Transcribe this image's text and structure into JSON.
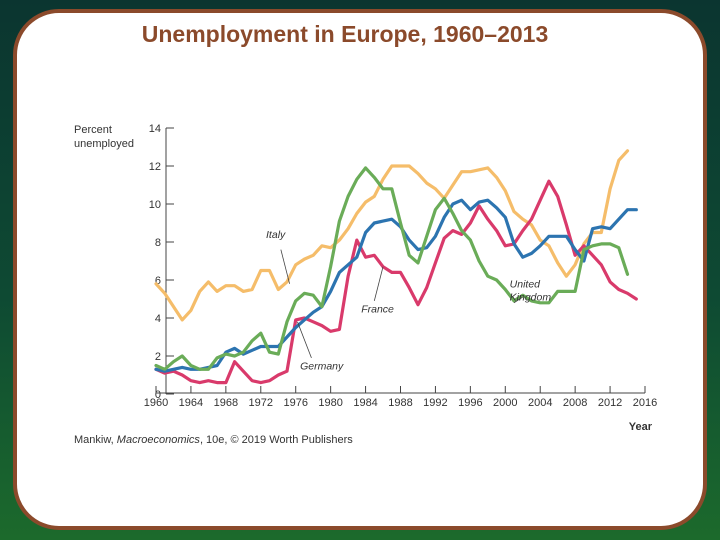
{
  "slide": {
    "title": "Unemployment in Europe, 1960–2013"
  },
  "credit": {
    "author": "Mankiw, ",
    "book": "Macroeconomics",
    "rest": ", 10e, © 2019 Worth Publishers"
  },
  "colors": {
    "border": "#8b4a2b",
    "title": "#8b4a2b"
  },
  "chart_data": {
    "type": "line",
    "title": "",
    "ylabel": "Percent unemployed",
    "ylabel_lines": [
      "Percent",
      "unemployed"
    ],
    "xlabel": "Year",
    "xlim": [
      1960,
      2016
    ],
    "ylim": [
      0,
      14
    ],
    "x_ticks": [
      1960,
      1964,
      1968,
      1972,
      1976,
      1980,
      1984,
      1988,
      1992,
      1996,
      2000,
      2004,
      2008,
      2012,
      2016
    ],
    "y_ticks": [
      0,
      2,
      4,
      6,
      8,
      10,
      12,
      14
    ],
    "grid": false,
    "legend": "inline labels",
    "series": [
      {
        "name": "Italy",
        "color": "#f5bd6a",
        "label": {
          "lines": [
            "Italy"
          ],
          "pos": [
            1972.6,
            8.2
          ],
          "leader": [
            [
              1974.3,
              7.6
            ],
            [
              1975.3,
              5.8
            ]
          ]
        },
        "points": [
          [
            1960,
            5.8
          ],
          [
            1961,
            5.3
          ],
          [
            1962,
            4.6
          ],
          [
            1963,
            3.9
          ],
          [
            1964,
            4.4
          ],
          [
            1965,
            5.4
          ],
          [
            1966,
            5.9
          ],
          [
            1967,
            5.4
          ],
          [
            1968,
            5.7
          ],
          [
            1969,
            5.7
          ],
          [
            1970,
            5.4
          ],
          [
            1971,
            5.5
          ],
          [
            1972,
            6.5
          ],
          [
            1973,
            6.5
          ],
          [
            1974,
            5.5
          ],
          [
            1975,
            5.9
          ],
          [
            1976,
            6.8
          ],
          [
            1977,
            7.1
          ],
          [
            1978,
            7.3
          ],
          [
            1979,
            7.8
          ],
          [
            1980,
            7.7
          ],
          [
            1981,
            8.1
          ],
          [
            1982,
            8.7
          ],
          [
            1983,
            9.5
          ],
          [
            1984,
            10.1
          ],
          [
            1985,
            10.4
          ],
          [
            1986,
            11.3
          ],
          [
            1987,
            12.0
          ],
          [
            1988,
            12.0
          ],
          [
            1989,
            12.0
          ],
          [
            1990,
            11.6
          ],
          [
            1991,
            11.1
          ],
          [
            1992,
            10.8
          ],
          [
            1993,
            10.3
          ],
          [
            1994,
            11.0
          ],
          [
            1995,
            11.7
          ],
          [
            1996,
            11.7
          ],
          [
            1997,
            11.8
          ],
          [
            1998,
            11.9
          ],
          [
            1999,
            11.4
          ],
          [
            2000,
            10.7
          ],
          [
            2001,
            9.6
          ],
          [
            2002,
            9.2
          ],
          [
            2003,
            8.9
          ],
          [
            2004,
            8.1
          ],
          [
            2005,
            7.8
          ],
          [
            2006,
            6.9
          ],
          [
            2007,
            6.2
          ],
          [
            2008,
            6.8
          ],
          [
            2009,
            7.9
          ],
          [
            2010,
            8.5
          ],
          [
            2011,
            8.5
          ],
          [
            2012,
            10.8
          ],
          [
            2013,
            12.3
          ],
          [
            2014,
            12.8
          ]
        ]
      },
      {
        "name": "France",
        "color": "#d93a6b",
        "label": {
          "lines": [
            "France"
          ],
          "pos": [
            1983.5,
            4.3
          ],
          "leader": [
            [
              1985.0,
              4.9
            ],
            [
              1986.0,
              6.7
            ]
          ]
        },
        "points": [
          [
            1960,
            1.3
          ],
          [
            1961,
            1.1
          ],
          [
            1962,
            1.2
          ],
          [
            1963,
            1.0
          ],
          [
            1964,
            0.7
          ],
          [
            1965,
            0.6
          ],
          [
            1966,
            0.7
          ],
          [
            1967,
            0.6
          ],
          [
            1968,
            0.6
          ],
          [
            1969,
            1.7
          ],
          [
            1970,
            1.2
          ],
          [
            1971,
            0.7
          ],
          [
            1972,
            0.6
          ],
          [
            1973,
            0.7
          ],
          [
            1974,
            1.0
          ],
          [
            1975,
            1.2
          ],
          [
            1976,
            3.9
          ],
          [
            1977,
            4.0
          ],
          [
            1978,
            3.8
          ],
          [
            1979,
            3.6
          ],
          [
            1980,
            3.3
          ],
          [
            1981,
            3.4
          ],
          [
            1982,
            6.2
          ],
          [
            1983,
            8.1
          ],
          [
            1984,
            7.2
          ],
          [
            1985,
            7.3
          ],
          [
            1986,
            6.7
          ],
          [
            1987,
            6.4
          ],
          [
            1988,
            6.4
          ],
          [
            1989,
            5.6
          ],
          [
            1990,
            4.7
          ],
          [
            1991,
            5.6
          ],
          [
            1992,
            6.9
          ],
          [
            1993,
            8.2
          ],
          [
            1994,
            8.6
          ],
          [
            1995,
            8.4
          ],
          [
            1996,
            9.0
          ],
          [
            1997,
            9.9
          ],
          [
            1998,
            9.2
          ],
          [
            1999,
            8.6
          ],
          [
            2000,
            7.8
          ],
          [
            2001,
            7.9
          ],
          [
            2002,
            8.6
          ],
          [
            2003,
            9.2
          ],
          [
            2004,
            10.2
          ],
          [
            2005,
            11.2
          ],
          [
            2006,
            10.4
          ],
          [
            2007,
            8.9
          ],
          [
            2008,
            7.3
          ],
          [
            2009,
            7.8
          ],
          [
            2010,
            7.3
          ],
          [
            2011,
            6.8
          ],
          [
            2012,
            5.9
          ],
          [
            2013,
            5.5
          ],
          [
            2014,
            5.3
          ],
          [
            2015,
            5.0
          ]
        ]
      },
      {
        "name": "Germany",
        "color": "#2c74b0",
        "label": {
          "lines": [
            "Germany"
          ],
          "pos": [
            1976.5,
            1.3
          ],
          "leader": [
            [
              1977.8,
              1.9
            ],
            [
              1976.2,
              3.8
            ]
          ]
        },
        "points": [
          [
            1960,
            1.3
          ],
          [
            1961,
            1.2
          ],
          [
            1962,
            1.3
          ],
          [
            1963,
            1.4
          ],
          [
            1964,
            1.3
          ],
          [
            1965,
            1.3
          ],
          [
            1966,
            1.4
          ],
          [
            1967,
            1.5
          ],
          [
            1968,
            2.2
          ],
          [
            1969,
            2.4
          ],
          [
            1970,
            2.1
          ],
          [
            1971,
            2.3
          ],
          [
            1972,
            2.5
          ],
          [
            1973,
            2.5
          ],
          [
            1974,
            2.5
          ],
          [
            1975,
            3.0
          ],
          [
            1976,
            3.5
          ],
          [
            1977,
            3.9
          ],
          [
            1978,
            4.3
          ],
          [
            1979,
            4.6
          ],
          [
            1980,
            5.4
          ],
          [
            1981,
            6.4
          ],
          [
            1982,
            6.8
          ],
          [
            1983,
            7.2
          ],
          [
            1984,
            8.5
          ],
          [
            1985,
            9.0
          ],
          [
            1986,
            9.1
          ],
          [
            1987,
            9.2
          ],
          [
            1988,
            8.8
          ],
          [
            1989,
            8.1
          ],
          [
            1990,
            7.6
          ],
          [
            1991,
            7.7
          ],
          [
            1992,
            8.3
          ],
          [
            1993,
            9.3
          ],
          [
            1994,
            10.0
          ],
          [
            1995,
            10.2
          ],
          [
            1996,
            9.7
          ],
          [
            1997,
            10.1
          ],
          [
            1998,
            10.2
          ],
          [
            1999,
            9.8
          ],
          [
            2000,
            9.3
          ],
          [
            2001,
            7.9
          ],
          [
            2002,
            7.2
          ],
          [
            2003,
            7.4
          ],
          [
            2004,
            7.8
          ],
          [
            2005,
            8.3
          ],
          [
            2006,
            8.3
          ],
          [
            2007,
            8.3
          ],
          [
            2008,
            7.6
          ],
          [
            2009,
            7.0
          ],
          [
            2010,
            8.7
          ],
          [
            2011,
            8.8
          ],
          [
            2012,
            8.7
          ],
          [
            2013,
            9.2
          ],
          [
            2014,
            9.7
          ],
          [
            2015,
            9.7
          ]
        ]
      },
      {
        "name": "United Kingdom",
        "color": "#6aac58",
        "label": {
          "lines": [
            "United",
            "Kingdom"
          ],
          "pos": [
            2000.5,
            5.6
          ],
          "leader": [
            [
              2002.0,
              5.1
            ],
            [
              2001.0,
              4.8
            ]
          ]
        },
        "points": [
          [
            1960,
            1.5
          ],
          [
            1961,
            1.3
          ],
          [
            1962,
            1.7
          ],
          [
            1963,
            2.0
          ],
          [
            1964,
            1.5
          ],
          [
            1965,
            1.3
          ],
          [
            1966,
            1.3
          ],
          [
            1967,
            1.9
          ],
          [
            1968,
            2.1
          ],
          [
            1969,
            2.0
          ],
          [
            1970,
            2.2
          ],
          [
            1971,
            2.8
          ],
          [
            1972,
            3.2
          ],
          [
            1973,
            2.2
          ],
          [
            1974,
            2.1
          ],
          [
            1975,
            3.8
          ],
          [
            1976,
            4.9
          ],
          [
            1977,
            5.3
          ],
          [
            1978,
            5.2
          ],
          [
            1979,
            4.6
          ],
          [
            1980,
            6.7
          ],
          [
            1981,
            9.1
          ],
          [
            1982,
            10.4
          ],
          [
            1983,
            11.3
          ],
          [
            1984,
            11.9
          ],
          [
            1985,
            11.4
          ],
          [
            1986,
            10.8
          ],
          [
            1987,
            10.8
          ],
          [
            1988,
            9.0
          ],
          [
            1989,
            7.3
          ],
          [
            1990,
            6.9
          ],
          [
            1991,
            8.3
          ],
          [
            1992,
            9.7
          ],
          [
            1993,
            10.3
          ],
          [
            1994,
            9.5
          ],
          [
            1995,
            8.6
          ],
          [
            1996,
            8.1
          ],
          [
            1997,
            7.0
          ],
          [
            1998,
            6.2
          ],
          [
            1999,
            6.0
          ],
          [
            2000,
            5.5
          ],
          [
            2001,
            4.9
          ],
          [
            2002,
            5.2
          ],
          [
            2003,
            4.9
          ],
          [
            2004,
            4.8
          ],
          [
            2005,
            4.8
          ],
          [
            2006,
            5.4
          ],
          [
            2007,
            5.4
          ],
          [
            2008,
            5.4
          ],
          [
            2009,
            7.6
          ],
          [
            2010,
            7.8
          ],
          [
            2011,
            7.9
          ],
          [
            2012,
            7.9
          ],
          [
            2013,
            7.7
          ],
          [
            2014,
            6.3
          ]
        ]
      }
    ]
  }
}
